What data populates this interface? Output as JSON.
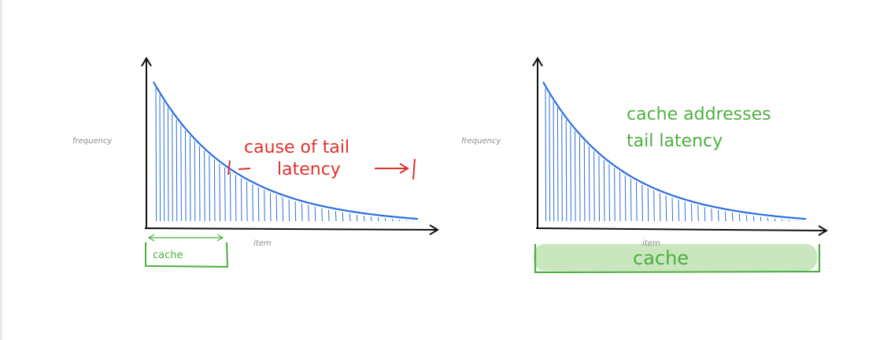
{
  "colors": {
    "axis": "#111111",
    "curve": "#2a6fe0",
    "hatch": "#2a6fe0",
    "annotation_red": "#e0302a",
    "annotation_green": "#4caf3f",
    "cache_fill": "#c9e6bf",
    "label_gray": "#8a8a8a"
  },
  "left_diagram": {
    "y_label": "frequency",
    "x_label": "item",
    "annotation_line1": "cause of tail",
    "annotation_line2": "latency",
    "cache_label": "cache"
  },
  "right_diagram": {
    "y_label": "frequency",
    "x_label": "item",
    "annotation_line1": "cache addresses",
    "annotation_line2": "tail latency",
    "cache_label": "cache"
  }
}
